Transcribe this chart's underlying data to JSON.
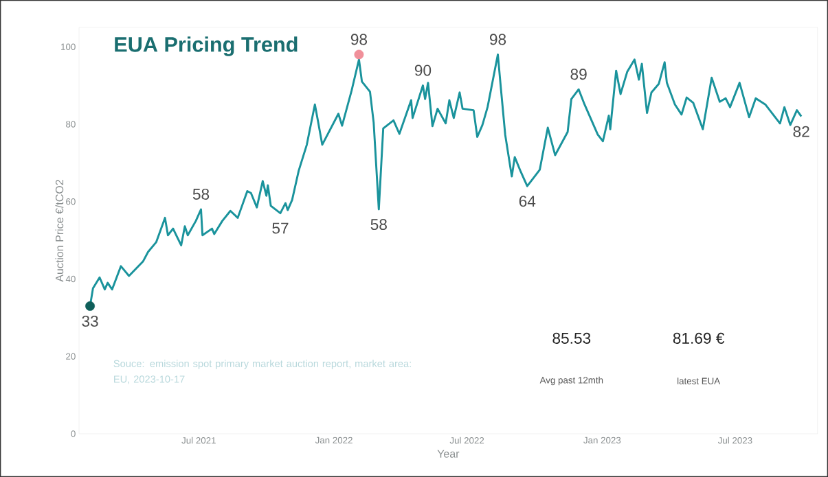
{
  "chart_data": {
    "type": "line",
    "title": "EUA Pricing Trend",
    "xlabel": "Year",
    "ylabel": "Auction Price €/tCO2",
    "xlim": [
      "2021-01-19",
      "2023-10-21"
    ],
    "ylim": [
      0,
      105
    ],
    "xticks": [
      {
        "value": "2021-07-01",
        "label": "Jul 2021"
      },
      {
        "value": "2022-01-01",
        "label": "Jan 2022"
      },
      {
        "value": "2022-07-01",
        "label": "Jul 2022"
      },
      {
        "value": "2023-01-01",
        "label": "Jan 2023"
      },
      {
        "value": "2023-07-01",
        "label": "Jul 2023"
      }
    ],
    "yticks": [
      0,
      20,
      40,
      60,
      80,
      100
    ],
    "grid": false,
    "marker": "none",
    "line_style": "solid",
    "series": [
      {
        "color": "#1a939c",
        "x": [
          "2021-02-03",
          "2021-02-07",
          "2021-02-16",
          "2021-02-23",
          "2021-02-27",
          "2021-03-05",
          "2021-03-17",
          "2021-03-28",
          "2021-04-16",
          "2021-04-23",
          "2021-05-04",
          "2021-05-16",
          "2021-05-20",
          "2021-05-27",
          "2021-06-07",
          "2021-06-12",
          "2021-06-16",
          "2021-06-27",
          "2021-07-04",
          "2021-07-06",
          "2021-07-19",
          "2021-07-22",
          "2021-08-02",
          "2021-08-13",
          "2021-08-23",
          "2021-09-05",
          "2021-09-10",
          "2021-09-18",
          "2021-09-26",
          "2021-10-01",
          "2021-10-03",
          "2021-10-07",
          "2021-10-20",
          "2021-10-27",
          "2021-10-30",
          "2021-11-05",
          "2021-11-14",
          "2021-11-25",
          "2021-12-06",
          "2021-12-10",
          "2021-12-16",
          "2022-01-07",
          "2022-01-12",
          "2022-01-25",
          "2022-02-04",
          "2022-02-08",
          "2022-02-19",
          "2022-02-24",
          "2022-03-03",
          "2022-03-09",
          "2022-03-23",
          "2022-03-31",
          "2022-04-16",
          "2022-04-18",
          "2022-05-02",
          "2022-05-05",
          "2022-05-09",
          "2022-05-15",
          "2022-05-22",
          "2022-06-02",
          "2022-06-07",
          "2022-06-13",
          "2022-06-21",
          "2022-06-25",
          "2022-07-10",
          "2022-07-15",
          "2022-07-22",
          "2022-07-29",
          "2022-08-12",
          "2022-08-16",
          "2022-08-22",
          "2022-08-31",
          "2022-09-04",
          "2022-09-12",
          "2022-09-21",
          "2022-10-08",
          "2022-10-19",
          "2022-10-29",
          "2022-11-15",
          "2022-11-20",
          "2022-11-30",
          "2022-12-08",
          "2022-12-26",
          "2023-01-02",
          "2023-01-10",
          "2023-01-12",
          "2023-01-20",
          "2023-01-26",
          "2023-02-04",
          "2023-02-14",
          "2023-02-20",
          "2023-02-24",
          "2023-03-03",
          "2023-03-09",
          "2023-03-19",
          "2023-03-27",
          "2023-03-30",
          "2023-04-10",
          "2023-04-19",
          "2023-04-26",
          "2023-05-05",
          "2023-05-18",
          "2023-05-30",
          "2023-06-10",
          "2023-06-18",
          "2023-06-24",
          "2023-07-07",
          "2023-07-20",
          "2023-07-29",
          "2023-08-11",
          "2023-08-31",
          "2023-09-06",
          "2023-09-14",
          "2023-09-23",
          "2023-09-29"
        ],
        "values": [
          33,
          37.6,
          40.4,
          37.3,
          39,
          37.3,
          43.3,
          40.8,
          44.5,
          47,
          49.5,
          55.8,
          51.3,
          53,
          48.7,
          53.6,
          51.3,
          55,
          58,
          51.3,
          53,
          51.6,
          55,
          57.6,
          55.8,
          62.7,
          62.2,
          58.5,
          65.3,
          61.5,
          64.2,
          58.9,
          57,
          59.6,
          57.8,
          60.4,
          68,
          74.7,
          85.1,
          81,
          74.7,
          82.7,
          79.6,
          88.7,
          96.7,
          91,
          88.4,
          80.4,
          58,
          78.9,
          81,
          77.5,
          86.2,
          81.6,
          90,
          86.5,
          90.7,
          79.5,
          84,
          80.2,
          86.2,
          81.6,
          88.2,
          84,
          83.6,
          76.7,
          79.8,
          84.4,
          98,
          89.6,
          77.3,
          66.5,
          71.5,
          67.8,
          64,
          68.2,
          79.1,
          72,
          78,
          86.5,
          89,
          85.1,
          77.3,
          75.6,
          82.2,
          78.7,
          93.8,
          87.8,
          93.5,
          96.7,
          91.5,
          95.6,
          82.9,
          88.2,
          90.4,
          96,
          90.7,
          85.1,
          82.5,
          86.9,
          85.5,
          78.7,
          92,
          85.8,
          86.7,
          84.4,
          90.7,
          81.8,
          86.7,
          85.1,
          80.2,
          84.4,
          79.8,
          83.6,
          82
        ]
      },
      {
        "type": "scatter",
        "marker": "circle",
        "color": "#0f5f5a",
        "x": [
          "2021-02-03"
        ],
        "values": [
          33
        ]
      },
      {
        "type": "scatter",
        "marker": "circle",
        "color": "#f0909a",
        "x": [
          "2022-02-04"
        ],
        "values": [
          98
        ]
      }
    ],
    "annotations": [
      {
        "text": "33",
        "x": "2021-02-03",
        "y": 33
      },
      {
        "text": "58",
        "x": "2021-07-04",
        "y": 58
      },
      {
        "text": "57",
        "x": "2021-10-20",
        "y": 57
      },
      {
        "text": "98",
        "x": "2022-02-04",
        "y": 98
      },
      {
        "text": "58",
        "x": "2022-03-03",
        "y": 58
      },
      {
        "text": "90",
        "x": "2022-05-02",
        "y": 90
      },
      {
        "text": "98",
        "x": "2022-08-12",
        "y": 98
      },
      {
        "text": "64",
        "x": "2022-09-21",
        "y": 64
      },
      {
        "text": "89",
        "x": "2022-11-30",
        "y": 89
      },
      {
        "text": "82",
        "x": "2023-09-29",
        "y": 82
      },
      "Souce: emission spot primary market auction report, market area: EU, 2023-10-17",
      "85.53",
      "Avg past 12mth",
      "81.69 €",
      "latest EUA"
    ]
  }
}
